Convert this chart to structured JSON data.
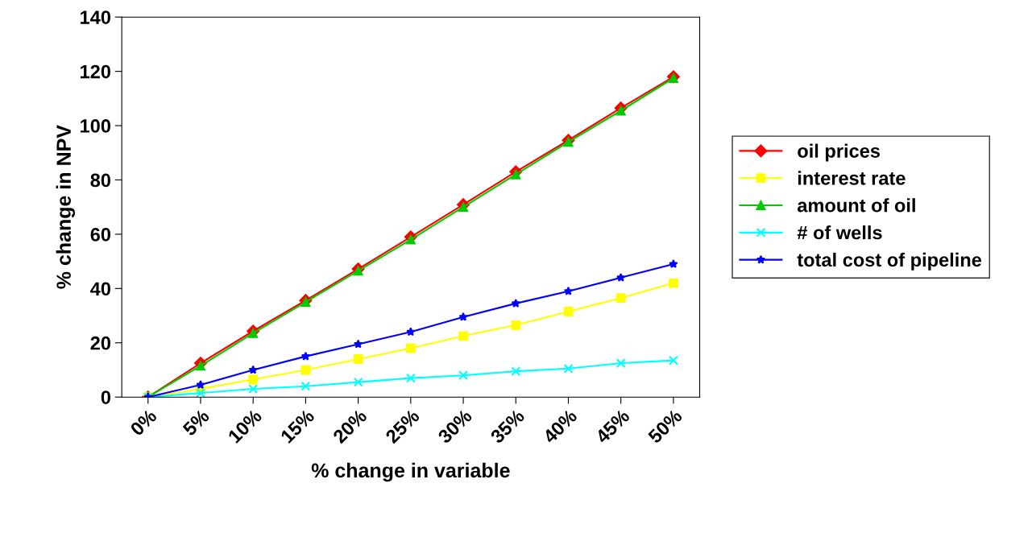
{
  "chart_data": {
    "type": "line",
    "xlabel": "% change in variable",
    "ylabel": "% change in NPV",
    "categories": [
      "0%",
      "5%",
      "10%",
      "15%",
      "20%",
      "25%",
      "30%",
      "35%",
      "40%",
      "45%",
      "50%"
    ],
    "ylim": [
      0,
      140
    ],
    "yticks": [
      0,
      20,
      40,
      60,
      80,
      100,
      120,
      140
    ],
    "grid": false,
    "legend": "right",
    "line_style": "solid",
    "series": [
      {
        "name": "oil prices",
        "color": "#ff0000",
        "marker": "diamond",
        "values": [
          0,
          12.5,
          24.3,
          35.6,
          47.2,
          59,
          70.9,
          83,
          94.6,
          106.5,
          118
        ]
      },
      {
        "name": "interest rate",
        "color": "#ffff00",
        "marker": "square",
        "values": [
          0,
          3,
          6.5,
          10,
          14,
          18,
          22.5,
          26.5,
          31.5,
          36.5,
          42
        ]
      },
      {
        "name": "amount of oil",
        "color": "#00cc00",
        "marker": "triangle",
        "values": [
          0,
          11.5,
          23.5,
          35,
          46.5,
          58,
          70,
          82,
          94,
          105.5,
          117.5
        ]
      },
      {
        "name": "# of wells",
        "color": "#00ffff",
        "marker": "cross",
        "values": [
          0,
          1.5,
          3,
          4,
          5.5,
          7,
          8,
          9.5,
          10.5,
          12.5,
          13.5
        ]
      },
      {
        "name": "total cost of pipeline",
        "color": "#0000ff",
        "marker": "star",
        "values": [
          0,
          4.5,
          10,
          15,
          19.5,
          24,
          29.5,
          34.5,
          39,
          44,
          49
        ]
      }
    ]
  }
}
